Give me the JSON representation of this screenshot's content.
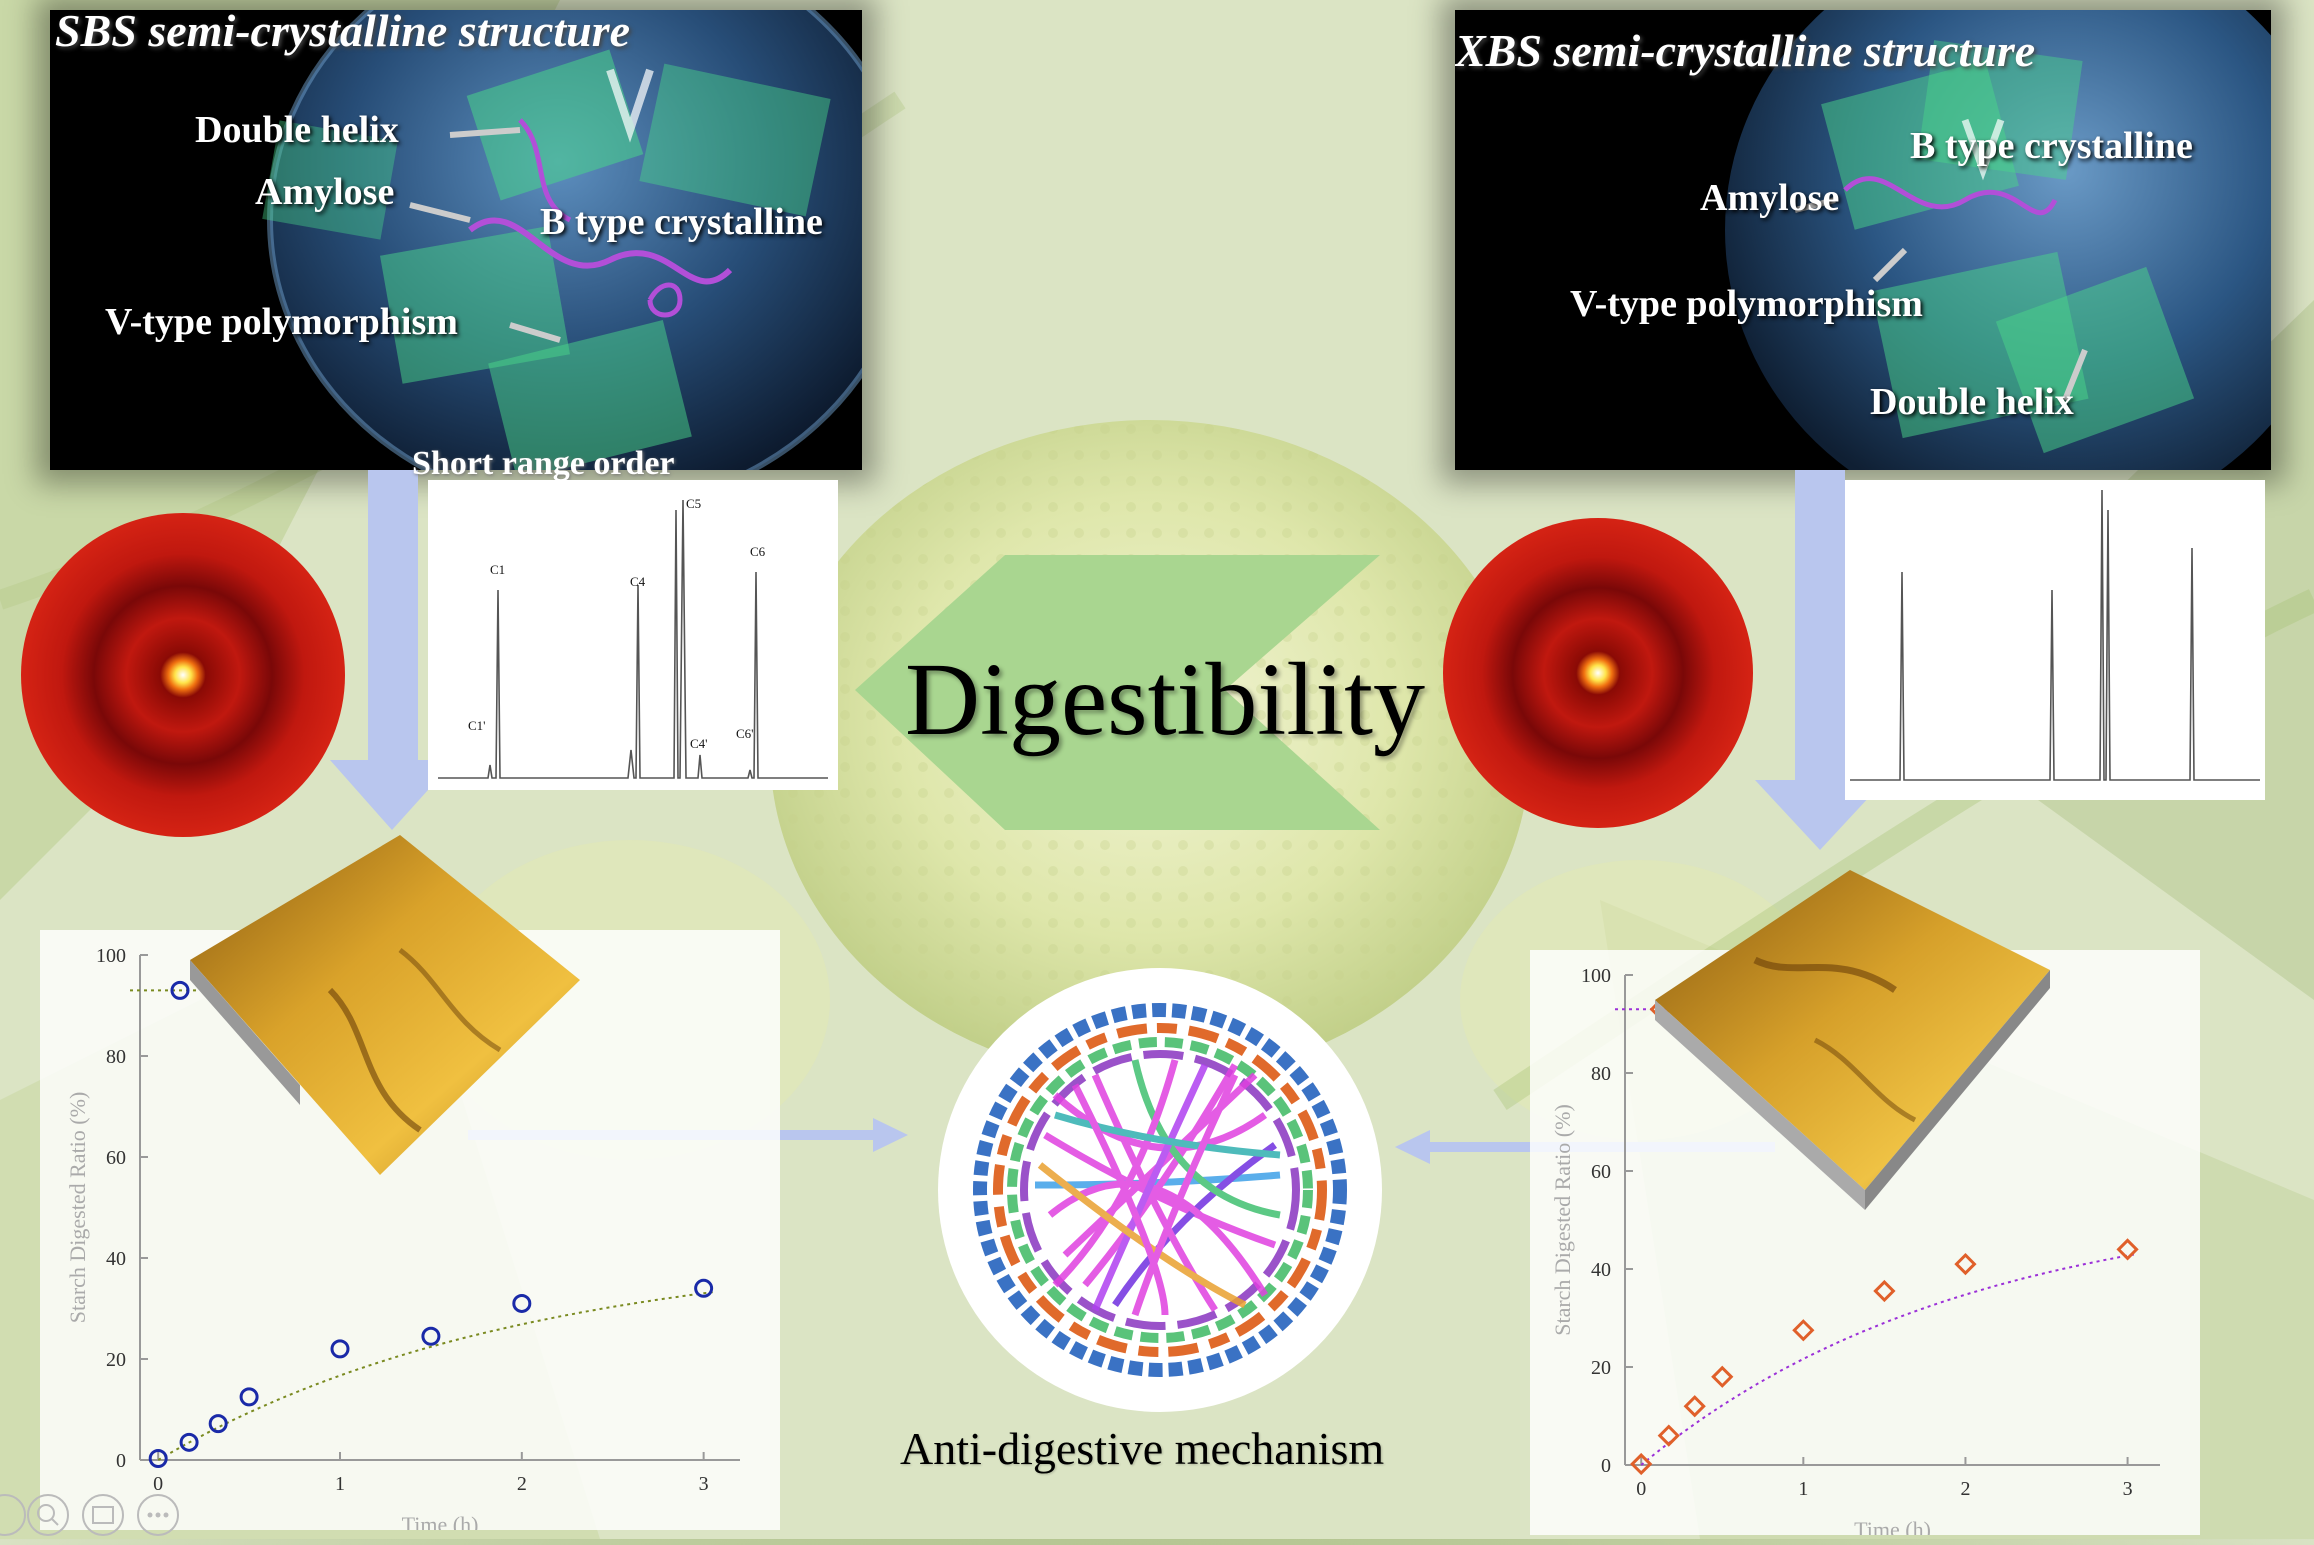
{
  "panels": {
    "left": {
      "title": "SBS semi-crystalline structure",
      "labels": [
        "Double helix",
        "Amylose",
        "B type crystalline",
        "V-type polymorphism"
      ]
    },
    "right": {
      "title": "XBS semi-crystalline structure",
      "labels": [
        "B type crystalline",
        "Amylose",
        "V-type polymorphism",
        "Double helix"
      ]
    }
  },
  "short_range_order": "Short range order",
  "center": {
    "digestibility": "Digestibility",
    "mechanism": "Anti-digestive mechanism"
  },
  "nmr": {
    "peaks": [
      "C1",
      "C4",
      "C5",
      "C6",
      "C1'",
      "C4'",
      "C6'"
    ]
  },
  "colors": {
    "arrow_blue": "#b9c6ee",
    "chevron_green": "#a9d690",
    "saxs_red": "#c0180f",
    "afm_gold": "#c9951c",
    "sbs_marker": "#1a2aa8",
    "xbs_marker": "#e0602a",
    "xbs_fit": "#9b30d8"
  },
  "chart_data": [
    {
      "type": "scatter",
      "name": "SBS",
      "xlabel": "Time (h)",
      "ylabel": "Starch Digested Ratio (%)",
      "ylim": [
        0,
        100
      ],
      "xlim": [
        -0.1,
        3.2
      ],
      "yticks": [
        "0",
        "20",
        "40",
        "60",
        "80",
        "100"
      ],
      "xticks": [
        "0",
        "1",
        "2",
        "3"
      ],
      "x": [
        0,
        0.17,
        0.33,
        0.5,
        1,
        1.5,
        2,
        3
      ],
      "y": [
        0.3,
        3.5,
        7.2,
        12.5,
        22,
        24.5,
        31,
        34
      ],
      "extra_point": {
        "x": 0.12,
        "y": 93
      },
      "marker": "circle"
    },
    {
      "type": "scatter",
      "name": "XBS",
      "xlabel": "Time (h)",
      "ylabel": "Starch Digested Ratio (%)",
      "ylim": [
        0,
        100
      ],
      "xlim": [
        -0.1,
        3.2
      ],
      "yticks": [
        "0",
        "20",
        "40",
        "60",
        "80",
        "100"
      ],
      "xticks": [
        "0",
        "1",
        "2",
        "3"
      ],
      "x": [
        0,
        0.17,
        0.33,
        0.5,
        1,
        1.5,
        2,
        3
      ],
      "y": [
        0.2,
        6,
        12,
        18,
        27.5,
        35.5,
        41,
        44
      ],
      "extra_point": {
        "x": 0.12,
        "y": 93
      },
      "marker": "diamond"
    }
  ],
  "toolbar": {
    "icons": [
      "zoom-in-icon",
      "search-icon",
      "layout-icon",
      "more-icon"
    ]
  }
}
